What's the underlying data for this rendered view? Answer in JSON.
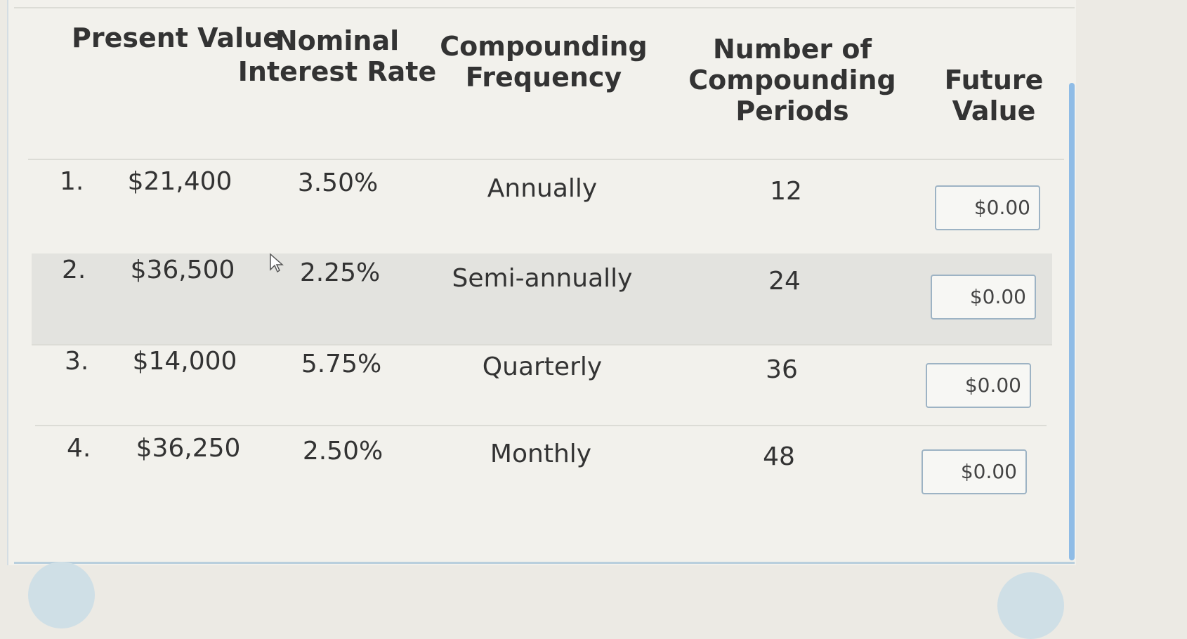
{
  "headers": {
    "present_value": "Present Value",
    "nominal_rate": "Nominal Interest Rate",
    "frequency": "Compounding Frequency",
    "periods": "Number of Compounding Periods",
    "future_value": "Future Value"
  },
  "rows": [
    {
      "num": "1.",
      "pv": "$21,400",
      "rate": "3.50%",
      "freq": "Annually",
      "periods": "12",
      "fv": "$0.00"
    },
    {
      "num": "2.",
      "pv": "$36,500",
      "rate": "2.25%",
      "freq": "Semi-annually",
      "periods": "24",
      "fv": "$0.00"
    },
    {
      "num": "3.",
      "pv": "$14,000",
      "rate": "5.75%",
      "freq": "Quarterly",
      "periods": "36",
      "fv": "$0.00"
    },
    {
      "num": "4.",
      "pv": "$36,250",
      "rate": "2.50%",
      "freq": "Monthly",
      "periods": "48",
      "fv": "$0.00"
    }
  ]
}
